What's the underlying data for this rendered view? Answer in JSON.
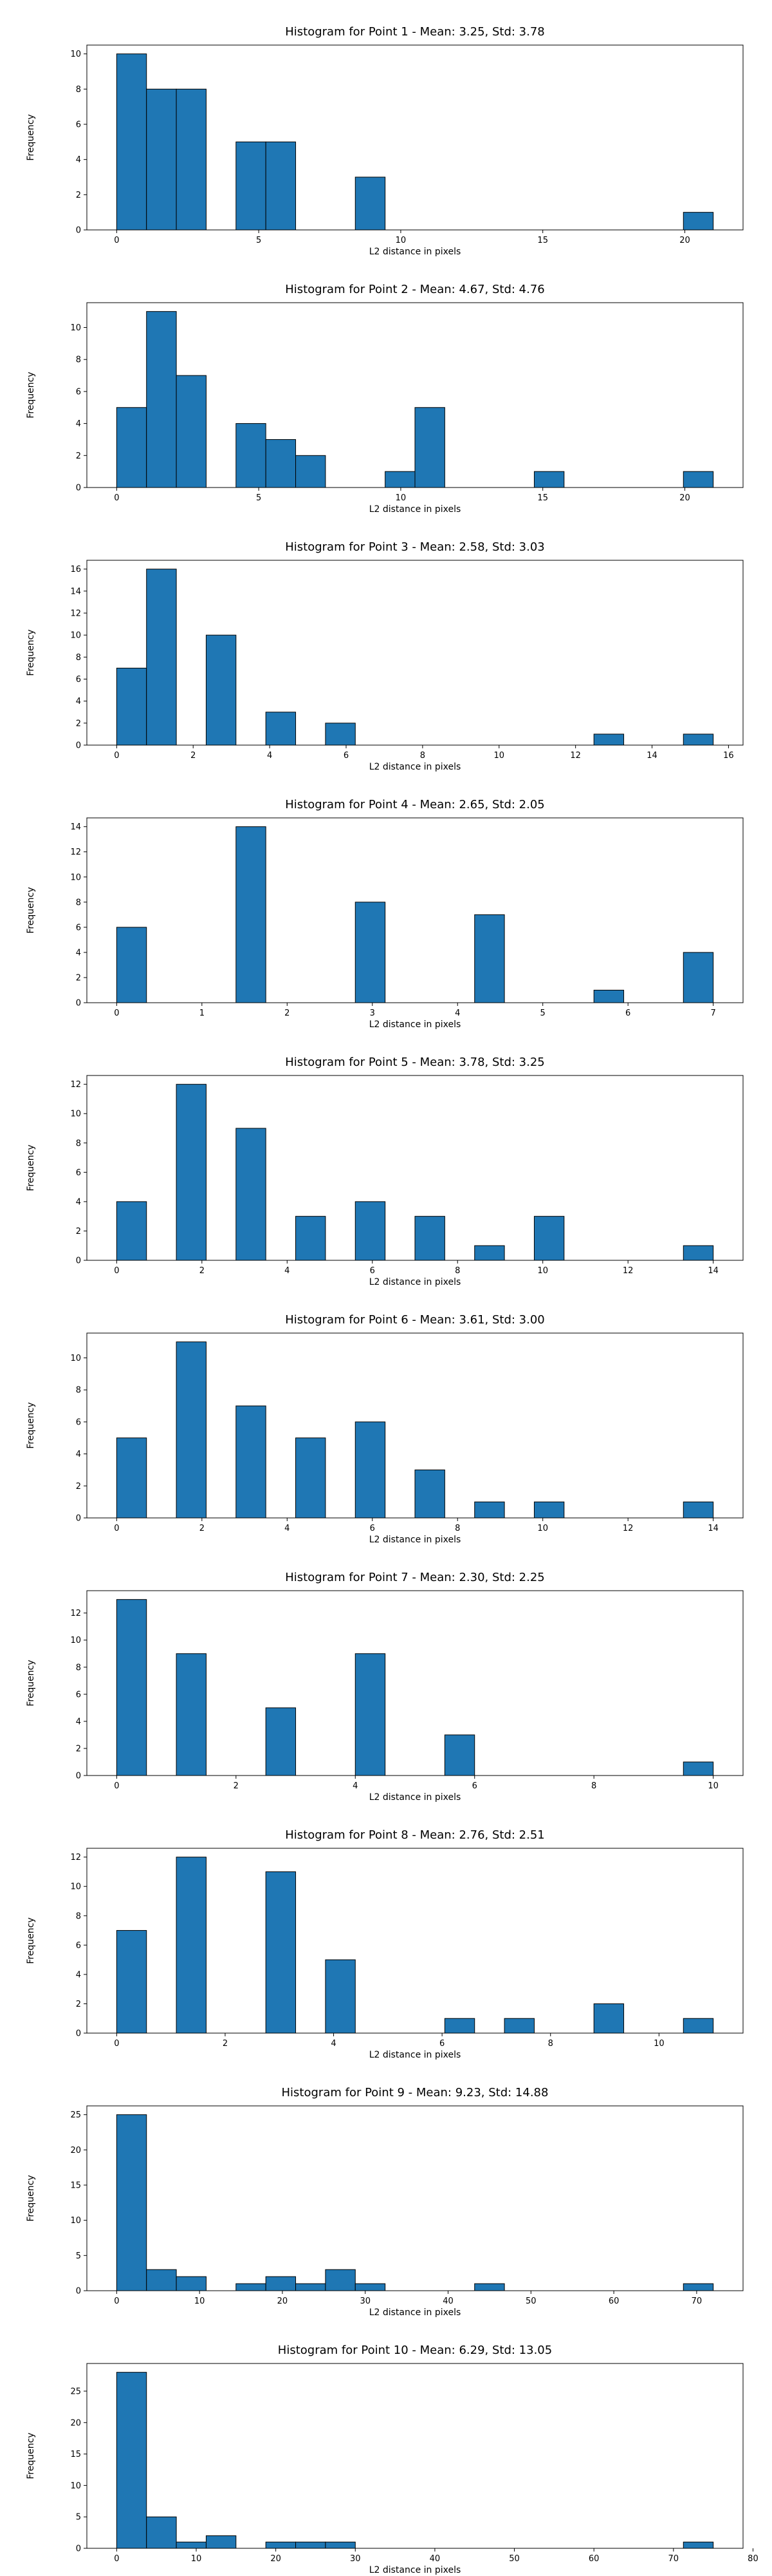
{
  "colors": {
    "bar_fill": "#1f77b4",
    "bar_edge": "#000000",
    "axes": "#000000",
    "background": "#ffffff"
  },
  "chart_data": [
    {
      "type": "bar",
      "title": "Histogram for Point 1 - Mean: 3.25, Std: 3.78",
      "xlabel": "L2 distance in pixels",
      "ylabel": "Frequency",
      "xlim": [
        -1.05,
        22.05
      ],
      "ylim": [
        0,
        10.5
      ],
      "xticks": [
        0,
        5,
        10,
        15,
        20
      ],
      "xtick_labels": [
        "0",
        "5",
        "10",
        "15",
        "20"
      ],
      "yticks": [
        0,
        2,
        4,
        6,
        8,
        10
      ],
      "ytick_labels": [
        "0",
        "2",
        "4",
        "6",
        "8",
        "10"
      ],
      "bin_edges": [
        0,
        1.05,
        2.1,
        3.15,
        4.2,
        5.25,
        6.3,
        7.35,
        8.4,
        9.45,
        10.5,
        11.55,
        12.6,
        13.65,
        14.7,
        15.75,
        16.8,
        17.85,
        18.9,
        19.95,
        21.0
      ],
      "counts": [
        10,
        8,
        8,
        0,
        5,
        5,
        0,
        0,
        3,
        0,
        0,
        0,
        0,
        0,
        0,
        0,
        0,
        0,
        0,
        1
      ]
    },
    {
      "type": "bar",
      "title": "Histogram for Point 2 - Mean: 4.67, Std: 4.76",
      "xlabel": "L2 distance in pixels",
      "ylabel": "Frequency",
      "xlim": [
        -1.05,
        22.05
      ],
      "ylim": [
        0,
        11.55
      ],
      "xticks": [
        0,
        5,
        10,
        15,
        20
      ],
      "xtick_labels": [
        "0",
        "5",
        "10",
        "15",
        "20"
      ],
      "yticks": [
        0,
        2,
        4,
        6,
        8,
        10
      ],
      "ytick_labels": [
        "0",
        "2",
        "4",
        "6",
        "8",
        "10"
      ],
      "bin_edges": [
        0,
        1.05,
        2.1,
        3.15,
        4.2,
        5.25,
        6.3,
        7.35,
        8.4,
        9.45,
        10.5,
        11.55,
        12.6,
        13.65,
        14.7,
        15.75,
        16.8,
        17.85,
        18.9,
        19.95,
        21.0
      ],
      "counts": [
        5,
        11,
        7,
        0,
        4,
        3,
        2,
        0,
        0,
        1,
        5,
        0,
        0,
        0,
        1,
        0,
        0,
        0,
        0,
        1
      ]
    },
    {
      "type": "bar",
      "title": "Histogram for Point 3 - Mean: 2.58, Std: 3.03",
      "xlabel": "L2 distance in pixels",
      "ylabel": "Frequency",
      "xlim": [
        -0.78,
        16.38
      ],
      "ylim": [
        0,
        16.8
      ],
      "xticks": [
        0,
        2,
        4,
        6,
        8,
        10,
        12,
        14,
        16
      ],
      "xtick_labels": [
        "0",
        "2",
        "4",
        "6",
        "8",
        "10",
        "12",
        "14",
        "16"
      ],
      "yticks": [
        0,
        2,
        4,
        6,
        8,
        10,
        12,
        14,
        16
      ],
      "ytick_labels": [
        "0",
        "2",
        "4",
        "6",
        "8",
        "10",
        "12",
        "14",
        "16"
      ],
      "bin_edges": [
        0,
        0.78,
        1.56,
        2.34,
        3.12,
        3.9,
        4.68,
        5.46,
        6.24,
        7.02,
        7.8,
        8.58,
        9.36,
        10.14,
        10.92,
        11.7,
        12.48,
        13.26,
        14.04,
        14.82,
        15.6
      ],
      "counts": [
        7,
        16,
        0,
        10,
        0,
        3,
        0,
        2,
        0,
        0,
        0,
        0,
        0,
        0,
        0,
        0,
        1,
        0,
        0,
        1
      ]
    },
    {
      "type": "bar",
      "title": "Histogram for Point 4 - Mean: 2.65, Std: 2.05",
      "xlabel": "L2 distance in pixels",
      "ylabel": "Frequency",
      "xlim": [
        -0.35,
        7.35
      ],
      "ylim": [
        0,
        14.7
      ],
      "xticks": [
        0,
        1,
        2,
        3,
        4,
        5,
        6,
        7
      ],
      "xtick_labels": [
        "0",
        "1",
        "2",
        "3",
        "4",
        "5",
        "6",
        "7"
      ],
      "yticks": [
        0,
        2,
        4,
        6,
        8,
        10,
        12,
        14
      ],
      "ytick_labels": [
        "0",
        "2",
        "4",
        "6",
        "8",
        "10",
        "12",
        "14"
      ],
      "bin_edges": [
        0,
        0.35,
        0.7,
        1.05,
        1.4,
        1.75,
        2.1,
        2.45,
        2.8,
        3.15,
        3.5,
        3.85,
        4.2,
        4.55,
        4.9,
        5.25,
        5.6,
        5.95,
        6.3,
        6.65,
        7.0
      ],
      "counts": [
        6,
        0,
        0,
        0,
        14,
        0,
        0,
        0,
        8,
        0,
        0,
        0,
        7,
        0,
        0,
        0,
        1,
        0,
        0,
        4
      ]
    },
    {
      "type": "bar",
      "title": "Histogram for Point 5 - Mean: 3.78, Std: 3.25",
      "xlabel": "L2 distance in pixels",
      "ylabel": "Frequency",
      "xlim": [
        -0.7,
        14.7
      ],
      "ylim": [
        0,
        12.6
      ],
      "xticks": [
        0,
        2,
        4,
        6,
        8,
        10,
        12,
        14
      ],
      "xtick_labels": [
        "0",
        "2",
        "4",
        "6",
        "8",
        "10",
        "12",
        "14"
      ],
      "yticks": [
        0,
        2,
        4,
        6,
        8,
        10,
        12
      ],
      "ytick_labels": [
        "0",
        "2",
        "4",
        "6",
        "8",
        "10",
        "12"
      ],
      "bin_edges": [
        0,
        0.7,
        1.4,
        2.1,
        2.8,
        3.5,
        4.2,
        4.9,
        5.6,
        6.3,
        7.0,
        7.7,
        8.4,
        9.1,
        9.8,
        10.5,
        11.2,
        11.9,
        12.6,
        13.3,
        14.0
      ],
      "counts": [
        4,
        0,
        12,
        0,
        9,
        0,
        3,
        0,
        4,
        0,
        3,
        0,
        1,
        0,
        3,
        0,
        0,
        0,
        0,
        1
      ]
    },
    {
      "type": "bar",
      "title": "Histogram for Point 6 - Mean: 3.61, Std: 3.00",
      "xlabel": "L2 distance in pixels",
      "ylabel": "Frequency",
      "xlim": [
        -0.7,
        14.7
      ],
      "ylim": [
        0,
        11.55
      ],
      "xticks": [
        0,
        2,
        4,
        6,
        8,
        10,
        12,
        14
      ],
      "xtick_labels": [
        "0",
        "2",
        "4",
        "6",
        "8",
        "10",
        "12",
        "14"
      ],
      "yticks": [
        0,
        2,
        4,
        6,
        8,
        10
      ],
      "ytick_labels": [
        "0",
        "2",
        "4",
        "6",
        "8",
        "10"
      ],
      "bin_edges": [
        0,
        0.7,
        1.4,
        2.1,
        2.8,
        3.5,
        4.2,
        4.9,
        5.6,
        6.3,
        7.0,
        7.7,
        8.4,
        9.1,
        9.8,
        10.5,
        11.2,
        11.9,
        12.6,
        13.3,
        14.0
      ],
      "counts": [
        5,
        0,
        11,
        0,
        7,
        0,
        5,
        0,
        6,
        0,
        3,
        0,
        1,
        0,
        1,
        0,
        0,
        0,
        0,
        1
      ]
    },
    {
      "type": "bar",
      "title": "Histogram for Point 7 - Mean: 2.30, Std: 2.25",
      "xlabel": "L2 distance in pixels",
      "ylabel": "Frequency",
      "xlim": [
        -0.5,
        10.5
      ],
      "ylim": [
        0,
        13.65
      ],
      "xticks": [
        0,
        2,
        4,
        6,
        8,
        10
      ],
      "xtick_labels": [
        "0",
        "2",
        "4",
        "6",
        "8",
        "10"
      ],
      "yticks": [
        0,
        2,
        4,
        6,
        8,
        10,
        12
      ],
      "ytick_labels": [
        "0",
        "2",
        "4",
        "6",
        "8",
        "10",
        "12"
      ],
      "bin_edges": [
        0,
        0.5,
        1.0,
        1.5,
        2.0,
        2.5,
        3.0,
        3.5,
        4.0,
        4.5,
        5.0,
        5.5,
        6.0,
        6.5,
        7.0,
        7.5,
        8.0,
        8.5,
        9.0,
        9.5,
        10.0
      ],
      "counts": [
        13,
        0,
        9,
        0,
        0,
        5,
        0,
        0,
        9,
        0,
        0,
        3,
        0,
        0,
        0,
        0,
        0,
        0,
        0,
        1
      ]
    },
    {
      "type": "bar",
      "title": "Histogram for Point 8 - Mean: 2.76, Std: 2.51",
      "xlabel": "L2 distance in pixels",
      "ylabel": "Frequency",
      "xlim": [
        -0.55,
        11.55
      ],
      "ylim": [
        0,
        12.6
      ],
      "xticks": [
        0,
        2,
        4,
        6,
        8,
        10
      ],
      "xtick_labels": [
        "0",
        "2",
        "4",
        "6",
        "8",
        "10"
      ],
      "yticks": [
        0,
        2,
        4,
        6,
        8,
        10,
        12
      ],
      "ytick_labels": [
        "0",
        "2",
        "4",
        "6",
        "8",
        "10",
        "12"
      ],
      "bin_edges": [
        0,
        0.55,
        1.1,
        1.65,
        2.2,
        2.75,
        3.3,
        3.85,
        4.4,
        4.95,
        5.5,
        6.05,
        6.6,
        7.15,
        7.7,
        8.25,
        8.8,
        9.35,
        9.9,
        10.45,
        11.0
      ],
      "counts": [
        7,
        0,
        12,
        0,
        0,
        11,
        0,
        5,
        0,
        0,
        0,
        1,
        0,
        1,
        0,
        0,
        2,
        0,
        0,
        1
      ]
    },
    {
      "type": "bar",
      "title": "Histogram for Point 9 - Mean: 9.23, Std: 14.88",
      "xlabel": "L2 distance in pixels",
      "ylabel": "Frequency",
      "xlim": [
        -3.6,
        75.6
      ],
      "ylim": [
        0,
        26.25
      ],
      "xticks": [
        0,
        10,
        20,
        30,
        40,
        50,
        60,
        70
      ],
      "xtick_labels": [
        "0",
        "10",
        "20",
        "30",
        "40",
        "50",
        "60",
        "70"
      ],
      "yticks": [
        0,
        5,
        10,
        15,
        20,
        25
      ],
      "ytick_labels": [
        "0",
        "5",
        "10",
        "15",
        "20",
        "25"
      ],
      "bin_edges": [
        0,
        3.6,
        7.2,
        10.8,
        14.4,
        18.0,
        21.6,
        25.2,
        28.8,
        32.4,
        36.0,
        39.6,
        43.2,
        46.8,
        50.4,
        54.0,
        57.6,
        61.2,
        64.8,
        68.4,
        72.0
      ],
      "counts": [
        25,
        3,
        2,
        0,
        1,
        2,
        1,
        3,
        1,
        0,
        0,
        0,
        1,
        0,
        0,
        0,
        0,
        0,
        0,
        1
      ]
    },
    {
      "type": "bar",
      "title": "Histogram for Point 10 - Mean: 6.29, Std: 13.05",
      "xlabel": "L2 distance in pixels",
      "ylabel": "Frequency",
      "xlim": [
        -3.75,
        78.75
      ],
      "ylim": [
        0,
        29.4
      ],
      "xticks": [
        0,
        10,
        20,
        30,
        40,
        50,
        60,
        70,
        80
      ],
      "xtick_labels": [
        "0",
        "10",
        "20",
        "30",
        "40",
        "50",
        "60",
        "70",
        "80"
      ],
      "yticks": [
        0,
        5,
        10,
        15,
        20,
        25
      ],
      "ytick_labels": [
        "0",
        "5",
        "10",
        "15",
        "20",
        "25"
      ],
      "bin_edges": [
        0,
        3.75,
        7.5,
        11.25,
        15.0,
        18.75,
        22.5,
        26.25,
        30.0,
        33.75,
        37.5,
        41.25,
        45.0,
        48.75,
        52.5,
        56.25,
        60.0,
        63.75,
        67.5,
        71.25,
        75.0
      ],
      "counts": [
        28,
        5,
        1,
        2,
        0,
        1,
        1,
        1,
        0,
        0,
        0,
        0,
        0,
        0,
        0,
        0,
        0,
        0,
        0,
        1
      ]
    }
  ]
}
